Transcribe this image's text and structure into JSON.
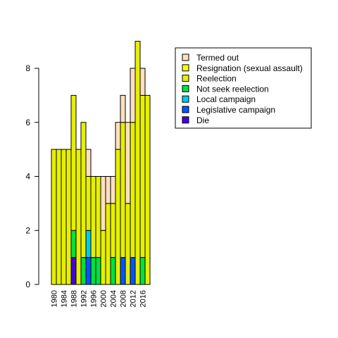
{
  "chart_data": {
    "type": "bar",
    "stacked": true,
    "x_tick_step": 2,
    "categories": [
      "1980",
      "1982",
      "1984",
      "1986",
      "1988",
      "1990",
      "1992",
      "1994",
      "1996",
      "1998",
      "2000",
      "2002",
      "2004",
      "2006",
      "2008",
      "2010",
      "2012",
      "2014",
      "2016",
      "2018"
    ],
    "series": [
      {
        "name": "Die",
        "color": "#4400e0",
        "values": [
          0,
          0,
          0,
          0,
          1,
          0,
          0,
          0,
          0,
          0,
          0,
          0,
          0,
          0,
          0,
          0,
          0,
          0,
          0,
          0
        ]
      },
      {
        "name": "Legislative campaign",
        "color": "#0055ff",
        "values": [
          0,
          0,
          0,
          0,
          0,
          0,
          0,
          1,
          0,
          0,
          0,
          0,
          0,
          0,
          1,
          0,
          1,
          0,
          0,
          0
        ]
      },
      {
        "name": "Local campaign",
        "color": "#00cce6",
        "values": [
          0,
          0,
          0,
          0,
          0,
          0,
          0,
          1,
          0,
          0,
          0,
          0,
          0,
          0,
          0,
          0,
          0,
          0,
          0,
          0
        ]
      },
      {
        "name": "Not seek reelection",
        "color": "#00e040",
        "values": [
          0,
          0,
          0,
          0,
          1,
          0,
          1,
          0,
          1,
          1,
          0,
          0,
          1,
          0,
          0,
          0,
          0,
          0,
          1,
          0
        ]
      },
      {
        "name": "Reelection",
        "color": "#e6f000",
        "values": [
          5,
          5,
          5,
          5,
          5,
          5,
          5,
          2,
          3,
          3,
          2,
          3,
          2,
          5,
          5,
          3,
          5,
          9,
          6,
          7
        ]
      },
      {
        "name": "Resignation (sexual assault)",
        "color": "#ffff00",
        "values": [
          0,
          0,
          0,
          0,
          0,
          0,
          0,
          0,
          0,
          0,
          0,
          0,
          0,
          0,
          0,
          0,
          0,
          0,
          0,
          0
        ]
      },
      {
        "name": "Termed out",
        "color": "#fde0c0",
        "values": [
          0,
          0,
          0,
          0,
          0,
          0,
          0,
          1,
          0,
          0,
          2,
          1,
          1,
          1,
          1,
          3,
          2,
          0,
          1,
          0
        ]
      }
    ],
    "legend_order": [
      "Termed out",
      "Resignation (sexual assault)",
      "Reelection",
      "Not seek reelection",
      "Local campaign",
      "Legislative campaign",
      "Die"
    ],
    "ylim": [
      0,
      9
    ],
    "yticks": [
      0,
      2,
      4,
      6,
      8
    ],
    "legend_position": "top-right",
    "grid": false,
    "title": "",
    "xlabel": "",
    "ylabel": ""
  }
}
